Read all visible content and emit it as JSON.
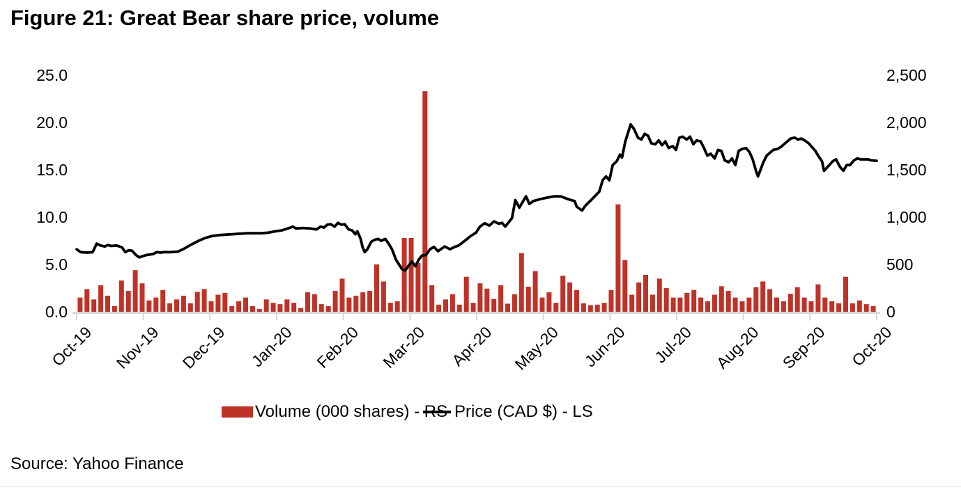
{
  "figure": {
    "title": "Figure 21: Great Bear share price, volume",
    "source": "Source: Yahoo Finance"
  },
  "legend": {
    "volume_label": "Volume (000 shares) - RS",
    "price_label": "Price (CAD $) - LS"
  },
  "colors": {
    "volume_bar": "#be3228",
    "price_line": "#000000",
    "axis": "#d9d9d9",
    "text": "#000000"
  },
  "chart_data": {
    "type": "combo_bar_line",
    "title": "Figure 21: Great Bear share price, volume",
    "x_axis": {
      "labels": [
        "Oct-19",
        "Nov-19",
        "Dec-19",
        "Jan-20",
        "Feb-20",
        "Mar-20",
        "Apr-20",
        "May-20",
        "Jun-20",
        "Jul-20",
        "Aug-20",
        "Sep-20",
        "Oct-20"
      ],
      "range_months": [
        0,
        12
      ]
    },
    "left_axis": {
      "ticks": [
        "25.0",
        "20.0",
        "15.0",
        "10.0",
        "5.0",
        "0.0"
      ],
      "min": 0,
      "max": 25,
      "applies_to": "Price (CAD $) - LS"
    },
    "right_axis": {
      "ticks": [
        "2,500",
        "2,000",
        "1,500",
        "1,000",
        "500",
        "0"
      ],
      "min": 0,
      "max": 2500,
      "applies_to": "Volume (000 shares) - RS"
    },
    "series": [
      {
        "name": "Volume (000 shares) - RS",
        "type": "bar",
        "axis": "right",
        "color": "#be3228",
        "values": [
          150,
          240,
          130,
          280,
          170,
          60,
          330,
          220,
          440,
          300,
          120,
          150,
          230,
          90,
          130,
          170,
          90,
          210,
          240,
          110,
          180,
          200,
          60,
          110,
          150,
          60,
          30,
          130,
          95,
          80,
          130,
          95,
          40,
          205,
          185,
          80,
          60,
          220,
          350,
          150,
          170,
          205,
          220,
          500,
          320,
          95,
          110,
          780,
          780,
          515,
          2330,
          280,
          75,
          130,
          185,
          75,
          370,
          95,
          300,
          245,
          135,
          280,
          85,
          185,
          620,
          265,
          430,
          150,
          205,
          95,
          380,
          310,
          230,
          90,
          70,
          75,
          95,
          230,
          1135,
          545,
          180,
          310,
          390,
          180,
          350,
          250,
          150,
          150,
          200,
          230,
          150,
          110,
          180,
          270,
          220,
          150,
          110,
          150,
          260,
          320,
          240,
          150,
          110,
          190,
          260,
          150,
          110,
          290,
          150,
          110,
          90,
          370,
          90,
          120,
          80,
          60
        ]
      },
      {
        "name": "Price (CAD $) - LS",
        "type": "line",
        "axis": "left",
        "color": "#000000",
        "points": [
          [
            0.0,
            6.6
          ],
          [
            0.06,
            6.3
          ],
          [
            0.16,
            6.25
          ],
          [
            0.24,
            6.3
          ],
          [
            0.3,
            7.2
          ],
          [
            0.36,
            7.0
          ],
          [
            0.42,
            6.9
          ],
          [
            0.47,
            7.05
          ],
          [
            0.52,
            6.95
          ],
          [
            0.6,
            7.0
          ],
          [
            0.68,
            6.8
          ],
          [
            0.73,
            6.3
          ],
          [
            0.78,
            6.5
          ],
          [
            0.83,
            6.45
          ],
          [
            0.89,
            6.0
          ],
          [
            0.94,
            5.75
          ],
          [
            1.0,
            5.9
          ],
          [
            1.05,
            6.0
          ],
          [
            1.1,
            6.05
          ],
          [
            1.15,
            6.1
          ],
          [
            1.2,
            6.3
          ],
          [
            1.26,
            6.25
          ],
          [
            1.31,
            6.3
          ],
          [
            1.41,
            6.3
          ],
          [
            1.52,
            6.35
          ],
          [
            1.62,
            6.7
          ],
          [
            1.72,
            7.1
          ],
          [
            1.83,
            7.5
          ],
          [
            1.93,
            7.8
          ],
          [
            2.03,
            8.0
          ],
          [
            2.14,
            8.1
          ],
          [
            2.24,
            8.15
          ],
          [
            2.35,
            8.2
          ],
          [
            2.45,
            8.25
          ],
          [
            2.56,
            8.3
          ],
          [
            2.66,
            8.3
          ],
          [
            2.77,
            8.3
          ],
          [
            2.87,
            8.35
          ],
          [
            2.98,
            8.5
          ],
          [
            3.08,
            8.6
          ],
          [
            3.19,
            8.85
          ],
          [
            3.24,
            9.0
          ],
          [
            3.29,
            8.8
          ],
          [
            3.4,
            8.85
          ],
          [
            3.5,
            8.8
          ],
          [
            3.6,
            8.7
          ],
          [
            3.66,
            9.0
          ],
          [
            3.71,
            8.9
          ],
          [
            3.76,
            9.2
          ],
          [
            3.81,
            9.25
          ],
          [
            3.87,
            9.0
          ],
          [
            3.92,
            9.4
          ],
          [
            3.97,
            9.2
          ],
          [
            4.02,
            9.25
          ],
          [
            4.08,
            8.7
          ],
          [
            4.13,
            8.6
          ],
          [
            4.18,
            8.2
          ],
          [
            4.21,
            8.5
          ],
          [
            4.26,
            7.7
          ],
          [
            4.29,
            6.8
          ],
          [
            4.32,
            6.3
          ],
          [
            4.36,
            6.6
          ],
          [
            4.42,
            7.4
          ],
          [
            4.47,
            7.6
          ],
          [
            4.52,
            7.7
          ],
          [
            4.57,
            7.5
          ],
          [
            4.63,
            7.7
          ],
          [
            4.68,
            7.2
          ],
          [
            4.73,
            6.6
          ],
          [
            4.79,
            5.5
          ],
          [
            4.88,
            4.5
          ],
          [
            4.93,
            4.35
          ],
          [
            4.98,
            4.9
          ],
          [
            5.03,
            5.3
          ],
          [
            5.08,
            4.8
          ],
          [
            5.13,
            5.5
          ],
          [
            5.18,
            5.95
          ],
          [
            5.24,
            6.0
          ],
          [
            5.3,
            6.6
          ],
          [
            5.36,
            6.85
          ],
          [
            5.42,
            6.4
          ],
          [
            5.52,
            6.9
          ],
          [
            5.6,
            6.6
          ],
          [
            5.67,
            6.85
          ],
          [
            5.73,
            7.0
          ],
          [
            5.84,
            7.6
          ],
          [
            5.91,
            8.0
          ],
          [
            5.99,
            8.35
          ],
          [
            6.05,
            9.0
          ],
          [
            6.12,
            9.35
          ],
          [
            6.19,
            9.1
          ],
          [
            6.26,
            9.55
          ],
          [
            6.33,
            9.3
          ],
          [
            6.38,
            9.4
          ],
          [
            6.43,
            9.0
          ],
          [
            6.53,
            9.9
          ],
          [
            6.58,
            11.8
          ],
          [
            6.64,
            11.0
          ],
          [
            6.74,
            12.2
          ],
          [
            6.79,
            11.4
          ],
          [
            6.85,
            11.7
          ],
          [
            6.95,
            11.9
          ],
          [
            7.05,
            12.05
          ],
          [
            7.16,
            12.2
          ],
          [
            7.26,
            12.2
          ],
          [
            7.37,
            11.9
          ],
          [
            7.47,
            11.7
          ],
          [
            7.5,
            11.1
          ],
          [
            7.58,
            10.7
          ],
          [
            7.63,
            11.2
          ],
          [
            7.73,
            11.9
          ],
          [
            7.84,
            12.7
          ],
          [
            7.89,
            13.9
          ],
          [
            7.94,
            14.3
          ],
          [
            7.99,
            13.9
          ],
          [
            8.04,
            15.5
          ],
          [
            8.1,
            15.9
          ],
          [
            8.15,
            16.6
          ],
          [
            8.18,
            16.3
          ],
          [
            8.23,
            18.0
          ],
          [
            8.31,
            19.8
          ],
          [
            8.36,
            19.3
          ],
          [
            8.42,
            18.4
          ],
          [
            8.47,
            18.2
          ],
          [
            8.52,
            18.8
          ],
          [
            8.57,
            18.6
          ],
          [
            8.62,
            17.8
          ],
          [
            8.68,
            17.7
          ],
          [
            8.73,
            18.1
          ],
          [
            8.78,
            17.6
          ],
          [
            8.83,
            18.0
          ],
          [
            8.88,
            17.3
          ],
          [
            8.94,
            17.5
          ],
          [
            8.99,
            17.1
          ],
          [
            9.04,
            18.4
          ],
          [
            9.09,
            18.5
          ],
          [
            9.15,
            18.2
          ],
          [
            9.2,
            18.5
          ],
          [
            9.25,
            17.7
          ],
          [
            9.3,
            18.1
          ],
          [
            9.36,
            18.0
          ],
          [
            9.41,
            17.3
          ],
          [
            9.46,
            16.5
          ],
          [
            9.51,
            16.7
          ],
          [
            9.57,
            16.2
          ],
          [
            9.62,
            17.1
          ],
          [
            9.67,
            17.0
          ],
          [
            9.72,
            16.0
          ],
          [
            9.78,
            15.8
          ],
          [
            9.83,
            16.2
          ],
          [
            9.88,
            15.5
          ],
          [
            9.93,
            17.0
          ],
          [
            9.98,
            17.2
          ],
          [
            10.04,
            17.3
          ],
          [
            10.09,
            16.9
          ],
          [
            10.14,
            16.1
          ],
          [
            10.19,
            14.9
          ],
          [
            10.22,
            14.3
          ],
          [
            10.3,
            15.8
          ],
          [
            10.35,
            16.5
          ],
          [
            10.4,
            16.8
          ],
          [
            10.45,
            17.1
          ],
          [
            10.51,
            17.2
          ],
          [
            10.56,
            17.4
          ],
          [
            10.61,
            17.7
          ],
          [
            10.66,
            18.0
          ],
          [
            10.71,
            18.3
          ],
          [
            10.77,
            18.4
          ],
          [
            10.82,
            18.2
          ],
          [
            10.87,
            18.3
          ],
          [
            10.92,
            18.1
          ],
          [
            10.98,
            17.8
          ],
          [
            11.03,
            17.4
          ],
          [
            11.08,
            17.0
          ],
          [
            11.13,
            16.4
          ],
          [
            11.18,
            15.9
          ],
          [
            11.21,
            14.9
          ],
          [
            11.29,
            15.5
          ],
          [
            11.34,
            15.9
          ],
          [
            11.39,
            16.1
          ],
          [
            11.45,
            15.3
          ],
          [
            11.5,
            14.9
          ],
          [
            11.55,
            15.5
          ],
          [
            11.6,
            15.5
          ],
          [
            11.66,
            16.0
          ],
          [
            11.71,
            16.2
          ],
          [
            11.76,
            16.1
          ],
          [
            11.87,
            16.1
          ],
          [
            11.92,
            16.0
          ],
          [
            12.0,
            15.95
          ]
        ]
      }
    ],
    "legend_position": "bottom",
    "grid": false
  }
}
